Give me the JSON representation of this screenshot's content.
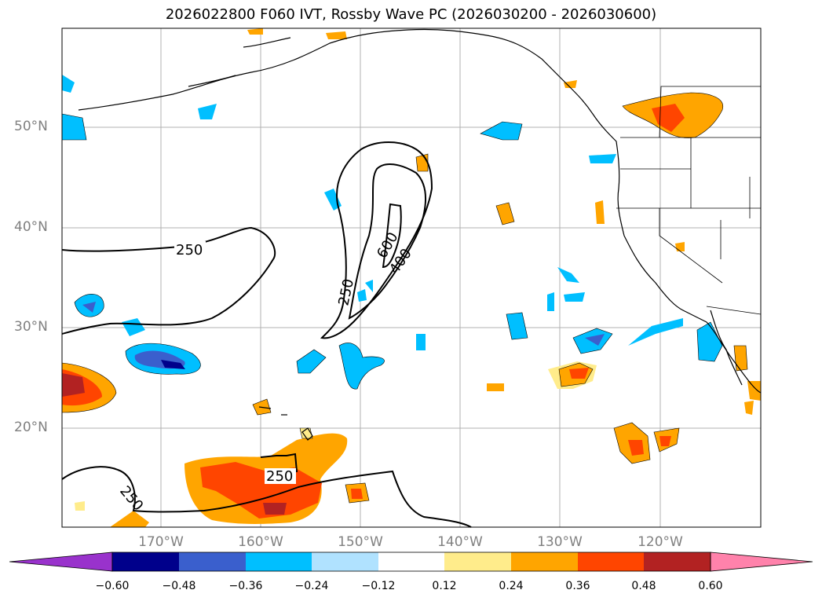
{
  "title": "2026022800 F060 IVT, Rossby Wave PC (2026030200 - 2026030600)",
  "latitude_labels": [
    "50°N",
    "40°N",
    "30°N",
    "20°N"
  ],
  "longitude_labels": [
    "170°W",
    "160°W",
    "150°W",
    "140°W",
    "130°W",
    "120°W"
  ],
  "contour_labels": [
    "250",
    "250",
    "250",
    "250",
    "400",
    "600"
  ],
  "colorbar": {
    "ticks": [
      "−0.60",
      "−0.48",
      "−0.36",
      "−0.24",
      "−0.12",
      "0.12",
      "0.24",
      "0.36",
      "0.48",
      "0.60"
    ],
    "colors": [
      "#9932cc",
      "#00008b",
      "#3a5fcd",
      "#00bfff",
      "#b0e2ff",
      "#ffffff",
      "#ffec8b",
      "#ffa500",
      "#ff4500",
      "#b22222",
      "#ff82ab"
    ]
  }
}
